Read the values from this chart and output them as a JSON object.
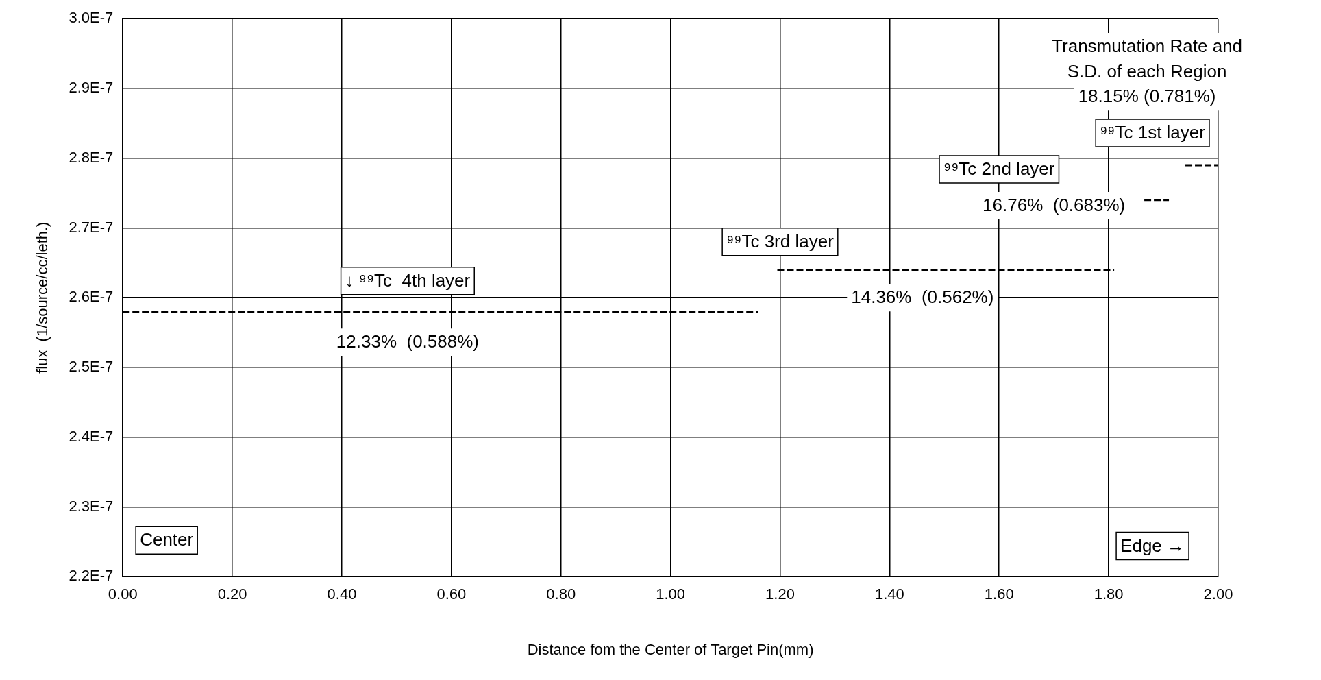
{
  "chart_data": {
    "type": "line",
    "xlabel": "Distance fom the Center of Target Pin(mm)",
    "ylabel": "flux  (1/source/cc/leth.)",
    "series": [
      {
        "color": "#000000",
        "x": [
          0,
          1.16
        ],
        "values": [
          2.58e-07,
          2.58e-07
        ]
      },
      {
        "color": "#000000",
        "x": [
          1.195,
          1.81
        ],
        "values": [
          2.64e-07,
          2.64e-07
        ]
      },
      {
        "color": "#000000",
        "x": [
          1.865,
          1.91
        ],
        "values": [
          2.74e-07,
          2.74e-07
        ]
      },
      {
        "color": "#000000",
        "x": [
          1.94,
          2.0
        ],
        "values": [
          2.79e-07,
          2.79e-07
        ]
      }
    ],
    "xlim": [
      0,
      2
    ],
    "xticks": [
      {
        "value": 0,
        "label": "0.00"
      },
      {
        "value": 0.2,
        "label": "0.20"
      },
      {
        "value": 0.4,
        "label": "0.40"
      },
      {
        "value": 0.6,
        "label": "0.60"
      },
      {
        "value": 0.8,
        "label": "0.80"
      },
      {
        "value": 1,
        "label": "1.00"
      },
      {
        "value": 1.2,
        "label": "1.20"
      },
      {
        "value": 1.4,
        "label": "1.40"
      },
      {
        "value": 1.6,
        "label": "1.60"
      },
      {
        "value": 1.8,
        "label": "1.80"
      },
      {
        "value": 2,
        "label": "2.00"
      }
    ],
    "ylim": [
      2.2e-07,
      3e-07
    ],
    "yticks": [
      {
        "value": 2.2e-07,
        "label": "2.2E-7"
      },
      {
        "value": 2.3e-07,
        "label": "2.3E-7"
      },
      {
        "value": 2.4e-07,
        "label": "2.4E-7"
      },
      {
        "value": 2.5e-07,
        "label": "2.5E-7"
      },
      {
        "value": 2.6e-07,
        "label": "2.6E-7"
      },
      {
        "value": 2.7e-07,
        "label": "2.7E-7"
      },
      {
        "value": 2.8e-07,
        "label": "2.8E-7"
      },
      {
        "value": 2.9e-07,
        "label": "2.9E-7"
      },
      {
        "value": 3e-07,
        "label": "3.0E-7"
      }
    ],
    "grid": true,
    "legend": false,
    "marker": "none",
    "line_style": "dashed",
    "annotations": [
      "Transmutation Rate and",
      "S.D. of each Region",
      "18.15% (0.781%)",
      "⁹⁹Tc 1st layer",
      "⁹⁹Tc 2nd layer",
      "16.76%  (0.683%)",
      "⁹⁹Tc 3rd layer",
      "14.36%  (0.562%)",
      "↓ ⁹⁹Tc  4th layer",
      "12.33%  (0.588%)",
      "Center",
      "Edge →"
    ]
  }
}
